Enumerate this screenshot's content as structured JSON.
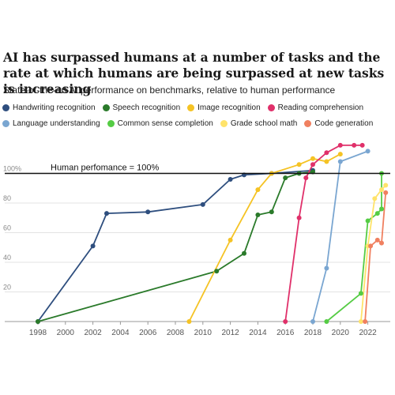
{
  "title": "AI has surpassed humans at a number of tasks and the rate at which humans are being surpassed at new tasks is increasing",
  "subtitle": "State-of-the-art AI performance on benchmarks, relative to human performance",
  "chart_data": {
    "type": "line",
    "title": "AI has surpassed humans at a number of tasks and the rate at which humans are being surpassed at new tasks is increasing",
    "subtitle": "State-of-the-art AI performance on benchmarks, relative to human performance",
    "xlabel": "",
    "ylabel": "",
    "xlim": [
      1997.5,
      2023.8
    ],
    "ylim": [
      0,
      120
    ],
    "x_ticks": [
      "1998",
      "2000",
      "2002",
      "2004",
      "2006",
      "2008",
      "2010",
      "2012",
      "2014",
      "2016",
      "2018",
      "2020",
      "2022"
    ],
    "y_ticks": [
      "20",
      "40",
      "60",
      "80",
      "100%"
    ],
    "grid": true,
    "legend_position": "top",
    "reference_line": {
      "y": 100,
      "label": "Human perfomance = 100%"
    },
    "series": [
      {
        "name": "Handwriting recognition",
        "color": "#2e4e7e",
        "points": [
          [
            1998,
            0
          ],
          [
            2002,
            51
          ],
          [
            2003,
            73
          ],
          [
            2006,
            74
          ],
          [
            2010,
            79
          ],
          [
            2012,
            96
          ],
          [
            2013,
            99
          ],
          [
            2015,
            100
          ],
          [
            2018,
            102
          ]
        ]
      },
      {
        "name": "Speech recognition",
        "color": "#2a7a2a",
        "points": [
          [
            1998,
            0
          ],
          [
            2011,
            34
          ],
          [
            2013,
            46
          ],
          [
            2014,
            72
          ],
          [
            2015,
            74
          ],
          [
            2016,
            97
          ],
          [
            2017,
            100
          ],
          [
            2018,
            101
          ]
        ]
      },
      {
        "name": "Image recognition",
        "color": "#f5c324",
        "points": [
          [
            2009,
            0
          ],
          [
            2012,
            55
          ],
          [
            2014,
            89
          ],
          [
            2015,
            100
          ],
          [
            2017,
            106
          ],
          [
            2018,
            110
          ],
          [
            2019,
            108
          ],
          [
            2020,
            113
          ]
        ]
      },
      {
        "name": "Reading comprehension",
        "color": "#e0306a",
        "points": [
          [
            2016,
            0
          ],
          [
            2017,
            70
          ],
          [
            2017.5,
            97
          ],
          [
            2018,
            106
          ],
          [
            2019,
            114
          ],
          [
            2020,
            119
          ],
          [
            2021,
            119
          ],
          [
            2021.6,
            119
          ]
        ]
      },
      {
        "name": "Language understanding",
        "color": "#7aa6d1",
        "points": [
          [
            2018,
            0
          ],
          [
            2019,
            36
          ],
          [
            2020,
            108
          ],
          [
            2022,
            115
          ]
        ]
      },
      {
        "name": "Common sense completion",
        "color": "#55cc44",
        "points": [
          [
            2019,
            0
          ],
          [
            2021.5,
            19
          ],
          [
            2022,
            68
          ],
          [
            2022.7,
            73
          ],
          [
            2023,
            76
          ],
          [
            2023,
            100
          ]
        ]
      },
      {
        "name": "Grade school math",
        "color": "#ffe36a",
        "points": [
          [
            2021.5,
            0
          ],
          [
            2022,
            51
          ],
          [
            2022.5,
            83
          ],
          [
            2023,
            89
          ],
          [
            2023.3,
            92
          ]
        ]
      },
      {
        "name": "Code generation",
        "color": "#f08060",
        "points": [
          [
            2021.8,
            0
          ],
          [
            2022.2,
            51
          ],
          [
            2022.7,
            55
          ],
          [
            2023,
            53
          ],
          [
            2023.3,
            87
          ]
        ]
      }
    ]
  }
}
